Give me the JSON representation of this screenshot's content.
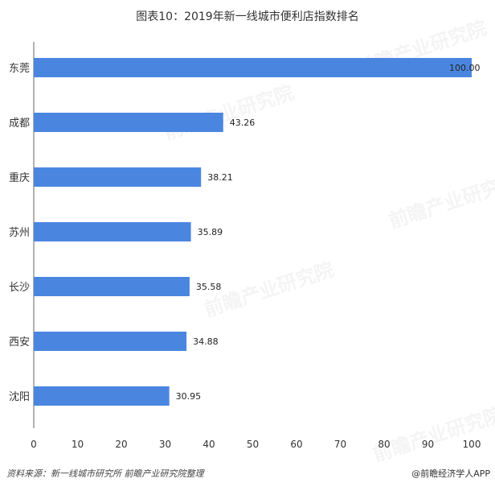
{
  "title": "图表10：2019年新一线城市便利店指数排名",
  "source": "资料来源：新一线城市研究所 前瞻产业研究院整理",
  "brand": "@前瞻经济学人APP",
  "watermark": "前瞻产业研究院",
  "colors": {
    "bar": "#4a86e0",
    "axis": "#666666",
    "text": "#333333"
  },
  "chart_data": {
    "type": "bar",
    "orientation": "horizontal",
    "title": "图表10：2019年新一线城市便利店指数排名",
    "categories": [
      "东莞",
      "成都",
      "重庆",
      "苏州",
      "长沙",
      "西安",
      "沈阳"
    ],
    "values": [
      100.0,
      43.26,
      38.21,
      35.89,
      35.58,
      34.88,
      30.95
    ],
    "value_labels": [
      "100.00",
      "43.26",
      "38.21",
      "35.89",
      "35.58",
      "34.88",
      "30.95"
    ],
    "xlim": [
      0,
      100
    ],
    "xticks": [
      0,
      10,
      20,
      30,
      40,
      50,
      60,
      70,
      80,
      90,
      100
    ],
    "grid": false,
    "legend": "none"
  }
}
